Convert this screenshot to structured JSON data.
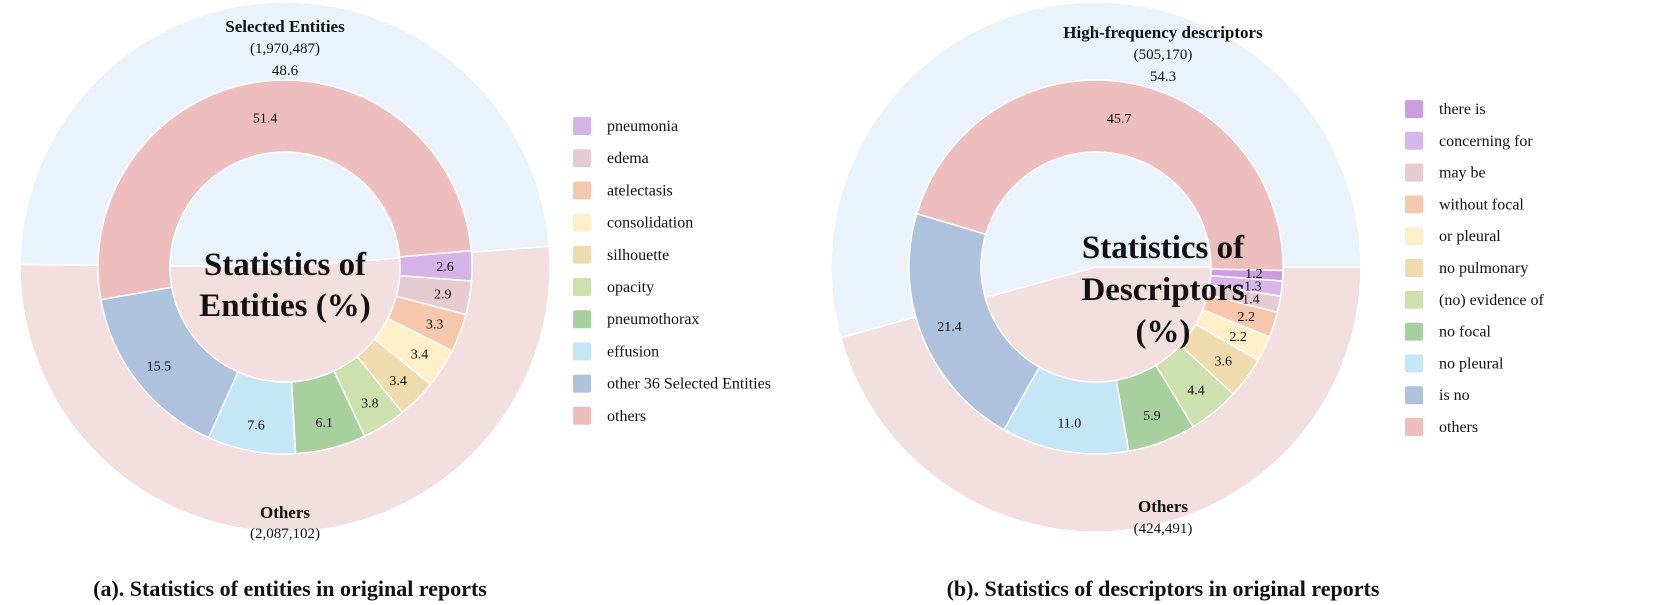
{
  "chart_data": [
    {
      "type": "pie",
      "subtype": "nested-donut",
      "caption": "(a). Statistics of entities in original reports",
      "center_title": [
        "Statistics of",
        "Entities (%)"
      ],
      "outer": [
        {
          "name": "Selected Entities",
          "count": "(1,970,487)",
          "value": 48.6,
          "color": "#eaf3fc"
        },
        {
          "name": "Others",
          "count": "(2,087,102)",
          "value": 51.4,
          "color": "#f4dfe0"
        }
      ],
      "inner": [
        {
          "label": "pneumonia",
          "value": 2.6,
          "color": "#d4b3e8"
        },
        {
          "label": "edema",
          "value": 2.9,
          "color": "#e6ccd0"
        },
        {
          "label": "atelectasis",
          "value": 3.3,
          "color": "#f6c7ad"
        },
        {
          "label": "consolidation",
          "value": 3.4,
          "color": "#fdf0c9"
        },
        {
          "label": "silhouette",
          "value": 3.4,
          "color": "#f0dbae"
        },
        {
          "label": "opacity",
          "value": 3.8,
          "color": "#cde0ad"
        },
        {
          "label": "pneumothorax",
          "value": 6.1,
          "color": "#a8cf9e"
        },
        {
          "label": "effusion",
          "value": 7.6,
          "color": "#c4e6f7"
        },
        {
          "label": "other 36 Selected Entities",
          "value": 15.5,
          "color": "#aec2dd"
        },
        {
          "label": "others",
          "value": 51.4,
          "color": "#eebdbd"
        }
      ],
      "selected_total_label": "48.6"
    },
    {
      "type": "pie",
      "subtype": "nested-donut",
      "caption": "(b). Statistics of descriptors in original reports",
      "center_title": [
        "Statistics of",
        "Descriptors",
        "(%)"
      ],
      "outer": [
        {
          "name": "High-frequency descriptors",
          "count": "(505,170)",
          "value": 54.3,
          "color": "#eaf3fc"
        },
        {
          "name": "Others",
          "count": "(424,491)",
          "value": 45.7,
          "color": "#f4dfe0"
        }
      ],
      "inner": [
        {
          "label": "there is",
          "value": 1.2,
          "color": "#cc9ee0"
        },
        {
          "label": "concerning for",
          "value": 1.3,
          "color": "#d8b6ec"
        },
        {
          "label": "may be",
          "value": 1.4,
          "color": "#e6ccd0"
        },
        {
          "label": "without focal",
          "value": 2.2,
          "color": "#f6c7ad"
        },
        {
          "label": "or pleural",
          "value": 2.2,
          "color": "#fdf0c9"
        },
        {
          "label": "no pulmonary",
          "value": 3.6,
          "color": "#f0dbae"
        },
        {
          "label": "(no) evidence of",
          "value": 4.4,
          "color": "#cde0ad"
        },
        {
          "label": "no focal",
          "value": 5.9,
          "color": "#a8cf9e"
        },
        {
          "label": "no pleural",
          "value": 11.0,
          "color": "#c4e6f7"
        },
        {
          "label": "is no",
          "value": 21.4,
          "color": "#aec2dd"
        },
        {
          "label": "others",
          "value": 45.7,
          "color": "#eebdbd"
        }
      ],
      "selected_total_label": "54.3"
    }
  ]
}
